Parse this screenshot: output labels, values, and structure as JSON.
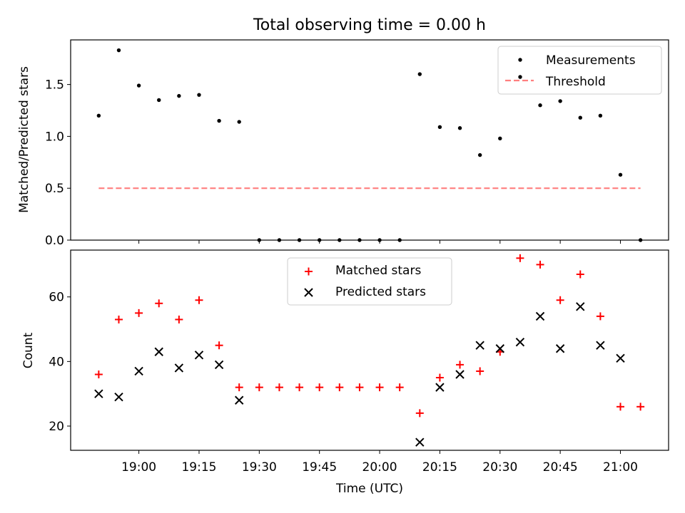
{
  "chart_data": [
    {
      "type": "scatter",
      "title": "Total observing time = 0.00 h",
      "ylabel": "Matched/Predicted stars",
      "xlabel": "",
      "ylim": [
        0,
        1.93
      ],
      "yticks": [
        "0.0",
        "0.5",
        "1.0",
        "1.5"
      ],
      "ytick_values": [
        0,
        0.5,
        1.0,
        1.5
      ],
      "grid": false,
      "legend": "top-right",
      "series": [
        {
          "name": "Measurements",
          "kind": "points",
          "color": "#000000",
          "x": [
            "18:50",
            "18:55",
            "19:00",
            "19:05",
            "19:10",
            "19:15",
            "19:20",
            "19:25",
            "19:30",
            "19:35",
            "19:40",
            "19:45",
            "19:50",
            "19:55",
            "20:00",
            "20:05",
            "20:10",
            "20:15",
            "20:20",
            "20:25",
            "20:30",
            "20:35",
            "20:40",
            "20:45",
            "20:50",
            "20:55",
            "21:00",
            "21:05"
          ],
          "values": [
            1.2,
            1.83,
            1.49,
            1.35,
            1.39,
            1.4,
            1.15,
            1.14,
            0.0,
            0.0,
            0.0,
            0.0,
            0.0,
            0.0,
            0.0,
            0.0,
            1.6,
            1.09,
            1.08,
            0.82,
            0.98,
            1.57,
            1.3,
            1.34,
            1.18,
            1.2,
            0.63,
            0.0
          ]
        },
        {
          "name": "Threshold",
          "kind": "dashed-line",
          "color": "#ff7f7f",
          "x": [
            "18:50",
            "21:05"
          ],
          "values": [
            0.5,
            0.5
          ]
        }
      ]
    },
    {
      "type": "scatter",
      "title": "",
      "ylabel": "Count",
      "xlabel": "Time (UTC)",
      "ylim": [
        12.5,
        74.5
      ],
      "yticks": [
        "20",
        "40",
        "60"
      ],
      "ytick_values": [
        20,
        40,
        60
      ],
      "xticks": [
        "19:00",
        "19:15",
        "19:30",
        "19:45",
        "20:00",
        "20:15",
        "20:30",
        "20:45",
        "21:00"
      ],
      "grid": false,
      "legend": "top-center",
      "series": [
        {
          "name": "Matched stars",
          "marker": "+",
          "color": "#ff0000",
          "x": [
            "18:50",
            "18:55",
            "19:00",
            "19:05",
            "19:10",
            "19:15",
            "19:20",
            "19:25",
            "19:30",
            "19:35",
            "19:40",
            "19:45",
            "19:50",
            "19:55",
            "20:00",
            "20:05",
            "20:10",
            "20:15",
            "20:20",
            "20:25",
            "20:30",
            "20:35",
            "20:40",
            "20:45",
            "20:50",
            "20:55",
            "21:00",
            "21:05"
          ],
          "values": [
            36,
            53,
            55,
            58,
            53,
            59,
            45,
            32,
            32,
            32,
            32,
            32,
            32,
            32,
            32,
            32,
            24,
            35,
            39,
            37,
            43,
            72,
            70,
            59,
            67,
            54,
            26,
            26
          ]
        },
        {
          "name": "Predicted stars",
          "marker": "x",
          "color": "#000000",
          "x": [
            "18:50",
            "18:55",
            "19:00",
            "19:05",
            "19:10",
            "19:15",
            "19:20",
            "19:25",
            "20:10",
            "20:15",
            "20:20",
            "20:25",
            "20:30",
            "20:35",
            "20:40",
            "20:45",
            "20:50",
            "20:55",
            "21:00"
          ],
          "values": [
            30,
            29,
            37,
            43,
            38,
            42,
            39,
            28,
            15,
            32,
            36,
            45,
            44,
            46,
            54,
            44,
            57,
            45,
            41
          ]
        }
      ]
    }
  ]
}
